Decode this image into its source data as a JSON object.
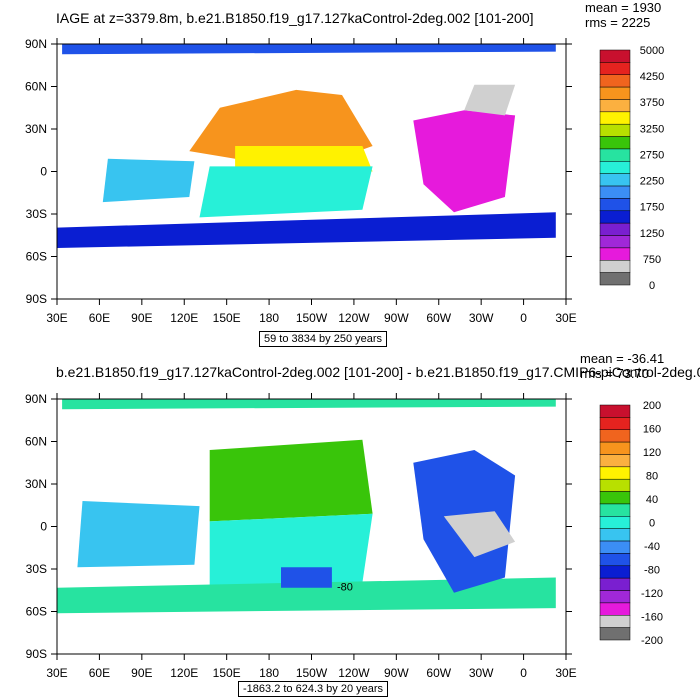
{
  "panels": [
    {
      "title": "IAGE at z=3379.8m, b.e21.B1850.f19_g17.127kaControl-2deg.002 [101-200]",
      "mean": "mean = 1930",
      "rms": "rms = 2225",
      "range": "59 to 3834 by 250 years",
      "lat_labels": [
        "90N",
        "60N",
        "30N",
        "0",
        "30S",
        "60S",
        "90S"
      ],
      "lon_labels": [
        "30E",
        "60E",
        "90E",
        "120E",
        "150E",
        "180",
        "150W",
        "120W",
        "90W",
        "60W",
        "30W",
        "0",
        "30E"
      ],
      "colorbar_labels": [
        "5000",
        "4250",
        "3750",
        "3250",
        "2750",
        "2250",
        "1750",
        "1250",
        "750",
        "0"
      ],
      "colorbar_colors": [
        "#c8102e",
        "#e5231f",
        "#f0641e",
        "#f7941d",
        "#fbb040",
        "#fff200",
        "#b8e000",
        "#39c50a",
        "#27e3a0",
        "#27f0d8",
        "#38c4f0",
        "#3b8ef5",
        "#1f52e8",
        "#0a1ed2",
        "#7a1fd0",
        "#a028d8",
        "#e61adc",
        "#d0d0d0",
        "#707070"
      ],
      "contour_value": ""
    },
    {
      "title": "b.e21.B1850.f19_g17.127kaControl-2deg.002 [101-200] - b.e21.B1850.f19_g17.CMIP6-piControl-2deg.0",
      "mean": "mean = -36.41",
      "rms": "rms = 73.70",
      "range": "-1863.2 to 624.3 by 20 years",
      "lat_labels": [
        "90N",
        "60N",
        "30N",
        "0",
        "30S",
        "60S",
        "90S"
      ],
      "lon_labels": [
        "30E",
        "60E",
        "90E",
        "120E",
        "150E",
        "180",
        "150W",
        "120W",
        "90W",
        "60W",
        "30W",
        "0",
        "30E"
      ],
      "colorbar_labels": [
        "200",
        "160",
        "120",
        "80",
        "40",
        "0",
        "-40",
        "-80",
        "-120",
        "-160",
        "-200"
      ],
      "colorbar_colors": [
        "#c8102e",
        "#e5231f",
        "#f0641e",
        "#f7941d",
        "#fbb040",
        "#fff200",
        "#b8e000",
        "#39c50a",
        "#27e3a0",
        "#27f0d8",
        "#38c4f0",
        "#3b8ef5",
        "#1f52e8",
        "#0a1ed2",
        "#7a1fd0",
        "#a028d8",
        "#e61adc",
        "#d0d0d0",
        "#707070"
      ],
      "contour_value": "-80"
    }
  ]
}
